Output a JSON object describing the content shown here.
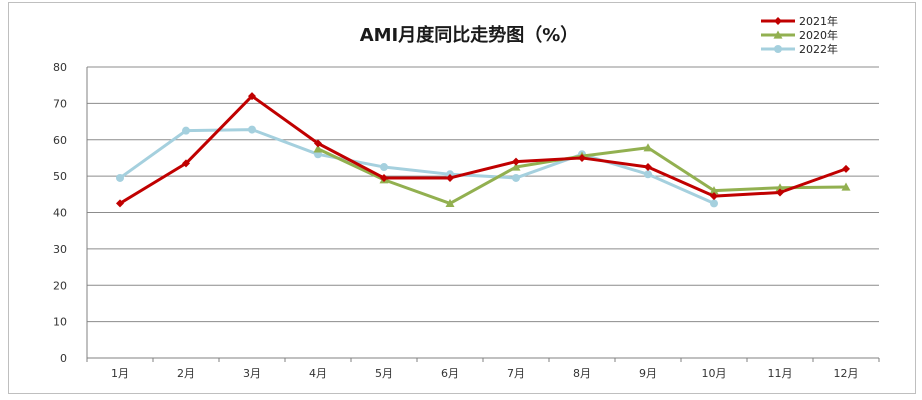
{
  "chart_data": {
    "type": "line",
    "title": "AMI月度同比走势图（%）",
    "xlabel": "",
    "ylabel": "",
    "categories": [
      "1月",
      "2月",
      "3月",
      "4月",
      "5月",
      "6月",
      "7月",
      "8月",
      "9月",
      "10月",
      "11月",
      "12月"
    ],
    "ylim": [
      0,
      80
    ],
    "yticks": [
      0,
      10,
      20,
      30,
      40,
      50,
      60,
      70,
      80
    ],
    "grid": true,
    "legend_position": "top-right",
    "series": [
      {
        "name": "2021年",
        "color": "#c00000",
        "marker": "diamond",
        "values": [
          42.5,
          53.5,
          72,
          59,
          49.5,
          49.5,
          54,
          55,
          52.5,
          44.5,
          45.5,
          52
        ]
      },
      {
        "name": "2020年",
        "color": "#92b050",
        "marker": "triangle",
        "values": [
          null,
          null,
          null,
          57.5,
          49,
          42.5,
          52.5,
          55.5,
          57.8,
          46,
          46.8,
          47
        ]
      },
      {
        "name": "2022年",
        "color": "#a5d0de",
        "marker": "circle",
        "values": [
          49.5,
          62.5,
          62.8,
          56,
          52.5,
          50.5,
          49.5,
          56,
          50.5,
          42.5,
          null,
          null
        ]
      }
    ]
  }
}
